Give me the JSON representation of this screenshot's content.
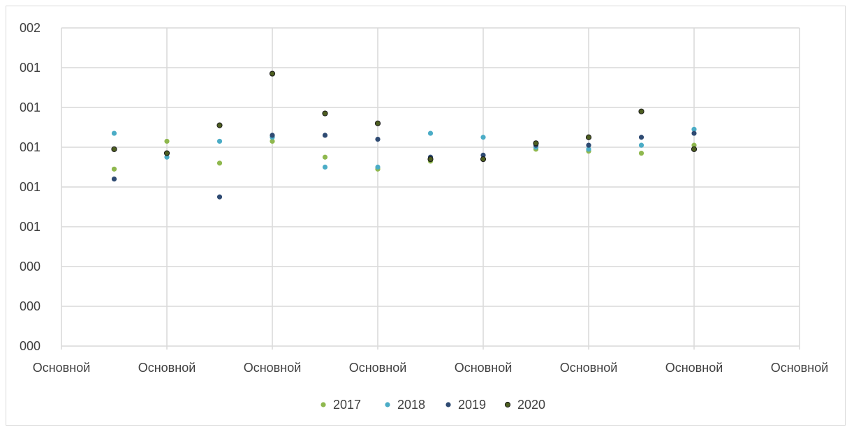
{
  "chart_data": {
    "type": "scatter",
    "title": "",
    "xlabel": "",
    "ylabel": "",
    "grid": true,
    "legend_position": "bottom",
    "x_range": [
      0,
      14
    ],
    "y_range": [
      0,
      8
    ],
    "x_tick_values": [
      0,
      2,
      4,
      6,
      8,
      10,
      12,
      14
    ],
    "x_tick_labels": [
      "Основной",
      "Основной",
      "Основной",
      "Основной",
      "Основной",
      "Основной",
      "Основной",
      "Основной"
    ],
    "y_tick_values": [
      0,
      1,
      2,
      3,
      4,
      5,
      6,
      7,
      8
    ],
    "y_tick_labels": [
      "000",
      "000",
      "000",
      "001",
      "001",
      "001",
      "001",
      "001",
      "002"
    ],
    "series": [
      {
        "name": "2017",
        "color": "#8fb84e",
        "points": [
          [
            1,
            4.45
          ],
          [
            2,
            5.15
          ],
          [
            3,
            4.6
          ],
          [
            4,
            5.15
          ],
          [
            5,
            4.75
          ],
          [
            6,
            4.45
          ],
          [
            7,
            4.65
          ],
          [
            8,
            4.7
          ],
          [
            9,
            4.95
          ],
          [
            10,
            4.9
          ],
          [
            11,
            4.85
          ],
          [
            12,
            5.05
          ]
        ]
      },
      {
        "name": "2018",
        "color": "#4bacc6",
        "points": [
          [
            1,
            5.35
          ],
          [
            2,
            4.75
          ],
          [
            3,
            5.15
          ],
          [
            4,
            5.25
          ],
          [
            5,
            4.5
          ],
          [
            6,
            4.5
          ],
          [
            7,
            5.35
          ],
          [
            8,
            5.25
          ],
          [
            9,
            5.0
          ],
          [
            10,
            4.95
          ],
          [
            11,
            5.05
          ],
          [
            12,
            5.45
          ]
        ]
      },
      {
        "name": "2019",
        "color": "#2e4a72",
        "points": [
          [
            1,
            4.2
          ],
          [
            2,
            4.85
          ],
          [
            3,
            3.75
          ],
          [
            4,
            5.3
          ],
          [
            5,
            5.3
          ],
          [
            6,
            5.2
          ],
          [
            7,
            4.75
          ],
          [
            8,
            4.8
          ],
          [
            9,
            5.05
          ],
          [
            10,
            5.05
          ],
          [
            11,
            5.25
          ],
          [
            12,
            5.35
          ]
        ]
      },
      {
        "name": "2020",
        "color": "#3b4a14",
        "points": [
          [
            1,
            4.95
          ],
          [
            2,
            4.85
          ],
          [
            3,
            5.55
          ],
          [
            4,
            6.85
          ],
          [
            5,
            5.85
          ],
          [
            6,
            5.6
          ],
          [
            7,
            4.7
          ],
          [
            8,
            4.7
          ],
          [
            9,
            5.1
          ],
          [
            10,
            5.25
          ],
          [
            11,
            5.9
          ],
          [
            12,
            4.95
          ]
        ]
      }
    ]
  }
}
